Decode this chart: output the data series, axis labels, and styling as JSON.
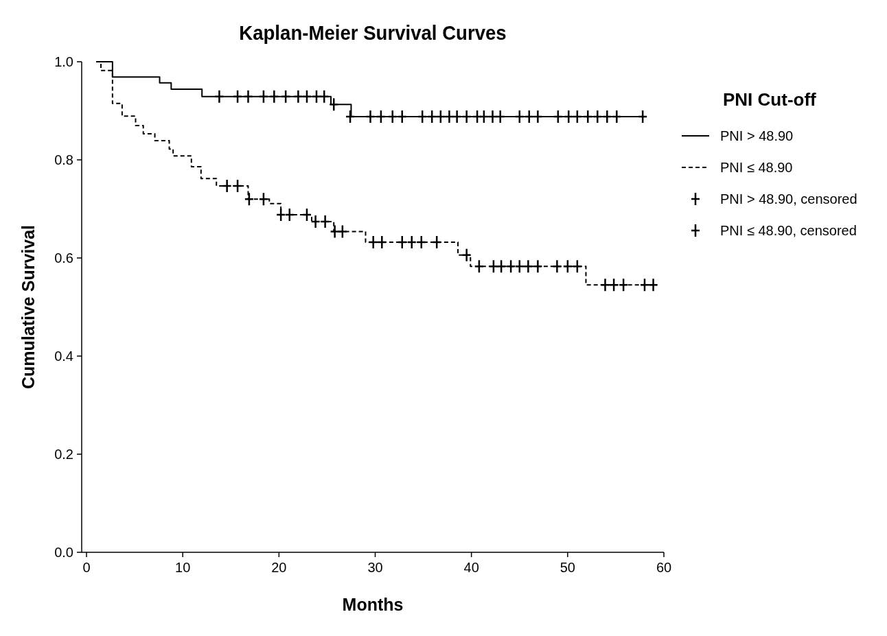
{
  "chart_data": {
    "type": "step",
    "title": "Kaplan-Meier Survival Curves",
    "xlabel": "Months",
    "ylabel": "Cumulative Survival",
    "legend_title": "PNI Cut-off",
    "legend": "right",
    "grid": false,
    "xlim": [
      -0.5,
      60
    ],
    "xticks": [
      0,
      10,
      20,
      30,
      40,
      50,
      60
    ],
    "ylim": [
      0,
      1
    ],
    "yticks": [
      {
        "value": 0,
        "label": "0.0"
      },
      {
        "value": 0.2,
        "label": "0.2"
      },
      {
        "value": 0.4,
        "label": "0.4"
      },
      {
        "value": 0.6,
        "label": "0.6"
      },
      {
        "value": 0.8,
        "label": "0.8"
      },
      {
        "value": 1,
        "label": "1.0"
      }
    ],
    "series": [
      {
        "name": "PNI > 48.90",
        "color": "#000000",
        "line_style": "solid",
        "marker": "none",
        "x": [
          1,
          2.7,
          7.6,
          8.8,
          12.0,
          25.4,
          27.5,
          58.1
        ],
        "values": [
          1,
          0.969,
          0.957,
          0.944,
          0.929,
          0.913,
          0.888,
          0.888
        ]
      },
      {
        "name": "PNI ≤ 48.90",
        "color": "#000000",
        "line_style": "dashed",
        "marker": "none",
        "x": [
          1,
          1.5,
          2.7,
          3.7,
          5.1,
          5.9,
          7.1,
          8.6,
          9.0,
          10.9,
          11.9,
          13.5,
          16.8,
          19.0,
          20.2,
          23.4,
          25.7,
          29.0,
          38.6,
          39.9,
          51.9,
          59.3
        ],
        "values": [
          1,
          0.982,
          0.915,
          0.889,
          0.87,
          0.853,
          0.839,
          0.822,
          0.808,
          0.786,
          0.762,
          0.747,
          0.72,
          0.711,
          0.688,
          0.674,
          0.654,
          0.632,
          0.606,
          0.583,
          0.545,
          0.545
        ]
      },
      {
        "name": "PNI > 48.90, censored",
        "type": "scatter",
        "color": "#000000",
        "marker": "cross",
        "x": [
          13.8,
          15.7,
          16.8,
          18.4,
          19.5,
          20.7,
          22.0,
          22.9,
          23.9,
          24.7,
          25.7,
          27.4,
          29.5,
          30.6,
          31.8,
          32.8,
          34.9,
          35.9,
          36.8,
          37.7,
          38.5,
          39.5,
          40.6,
          41.3,
          42.2,
          43.0,
          45.0,
          46.0,
          46.9,
          49.0,
          50.1,
          51.0,
          52.1,
          53.1,
          54.1,
          55.1,
          57.8
        ],
        "values": [
          0.929,
          0.929,
          0.929,
          0.929,
          0.929,
          0.929,
          0.929,
          0.929,
          0.929,
          0.929,
          0.913,
          0.888,
          0.888,
          0.888,
          0.888,
          0.888,
          0.888,
          0.888,
          0.888,
          0.888,
          0.888,
          0.888,
          0.888,
          0.888,
          0.888,
          0.888,
          0.888,
          0.888,
          0.888,
          0.888,
          0.888,
          0.888,
          0.888,
          0.888,
          0.888,
          0.888,
          0.888
        ]
      },
      {
        "name": "PNI ≤ 48.90, censored",
        "type": "scatter",
        "color": "#000000",
        "marker": "cross",
        "x": [
          14.6,
          15.7,
          16.9,
          18.4,
          20.2,
          21.1,
          22.9,
          23.8,
          24.8,
          25.8,
          26.6,
          29.8,
          30.7,
          32.8,
          33.8,
          34.8,
          36.4,
          39.5,
          40.8,
          42.3,
          43.1,
          44.1,
          45.0,
          45.9,
          46.9,
          48.9,
          50.0,
          51.0,
          53.9,
          54.8,
          55.8,
          58.0,
          58.9
        ],
        "values": [
          0.747,
          0.747,
          0.72,
          0.72,
          0.688,
          0.688,
          0.688,
          0.674,
          0.674,
          0.654,
          0.654,
          0.632,
          0.632,
          0.632,
          0.632,
          0.632,
          0.632,
          0.606,
          0.583,
          0.583,
          0.583,
          0.583,
          0.583,
          0.583,
          0.583,
          0.583,
          0.583,
          0.583,
          0.545,
          0.545,
          0.545,
          0.545,
          0.545
        ]
      }
    ]
  }
}
